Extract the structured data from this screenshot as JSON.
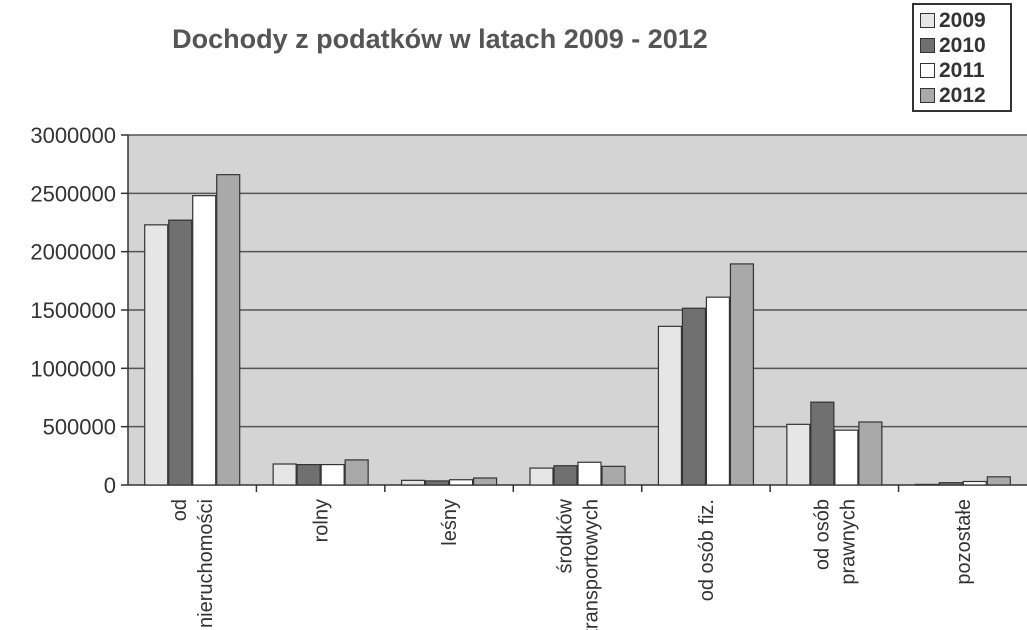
{
  "chart_data": {
    "type": "bar",
    "title": "Dochody z podatków w latach 2009 - 2012",
    "xlabel": "",
    "ylabel": "",
    "ylim": [
      0,
      3000000
    ],
    "yticks": [
      "0",
      "500000",
      "1000000",
      "1500000",
      "2000000",
      "2500000",
      "3000000"
    ],
    "grid": true,
    "legend_position": "top-right",
    "categories": [
      [
        "od",
        "nieruchomości"
      ],
      [
        "rolny"
      ],
      [
        "leśny"
      ],
      [
        "środków",
        "transportowych"
      ],
      [
        "od osób fiz."
      ],
      [
        "od osób",
        "prawnych"
      ],
      [
        "pozostałe"
      ]
    ],
    "series": [
      {
        "name": "2009",
        "color": "#e6e6e6",
        "values": [
          2230000,
          180000,
          40000,
          145000,
          1360000,
          520000,
          5000
        ]
      },
      {
        "name": "2010",
        "color": "#707070",
        "values": [
          2270000,
          175000,
          35000,
          165000,
          1515000,
          710000,
          20000
        ]
      },
      {
        "name": "2011",
        "color": "#ffffff",
        "values": [
          2480000,
          175000,
          45000,
          195000,
          1610000,
          470000,
          30000
        ]
      },
      {
        "name": "2012",
        "color": "#a9a9a9",
        "values": [
          2660000,
          215000,
          60000,
          160000,
          1895000,
          540000,
          70000
        ]
      }
    ]
  }
}
